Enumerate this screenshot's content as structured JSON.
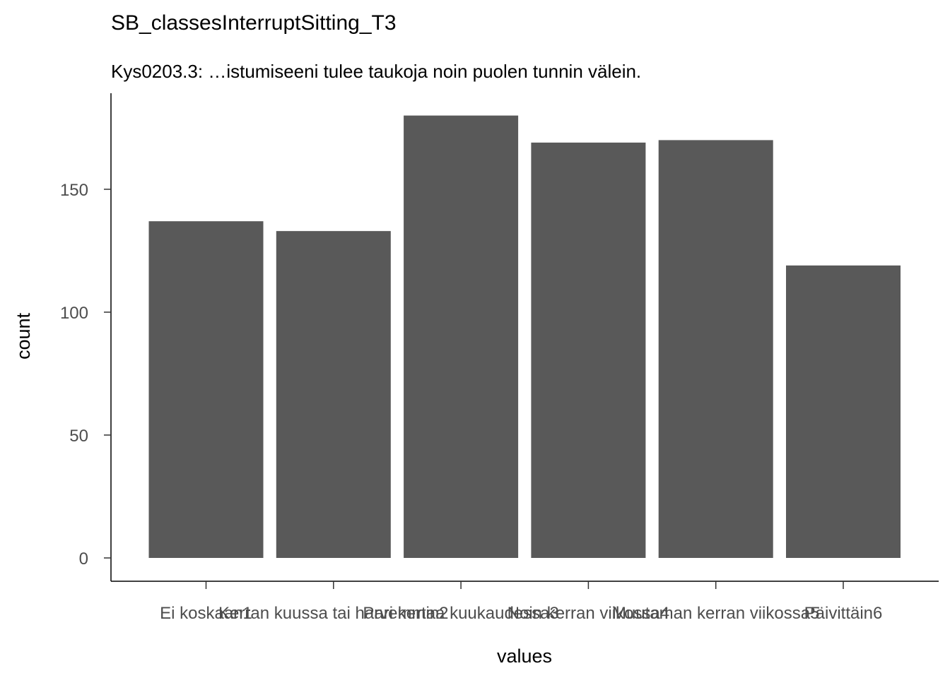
{
  "chart_data": {
    "type": "bar",
    "title": "SB_classesInterruptSitting_T3",
    "subtitle": "Kys0203.3: …istumiseeni tulee taukoja noin puolen tunnin välein.",
    "xlabel": "values",
    "ylabel": "count",
    "categories": [
      "Ei koskaan1",
      "Kerran kuussa tai harvemmin2",
      "Pari kertaa kuukaudessa3",
      "Noin kerran viikossa4",
      "Muutaman kerran viikossa5",
      "Päivittäin6"
    ],
    "values": [
      137,
      133,
      180,
      169,
      170,
      119
    ],
    "ylim": [
      0,
      185
    ],
    "yticks": [
      0,
      50,
      100,
      150
    ],
    "grid": false,
    "legend": "none",
    "bar_color": "#595959"
  }
}
